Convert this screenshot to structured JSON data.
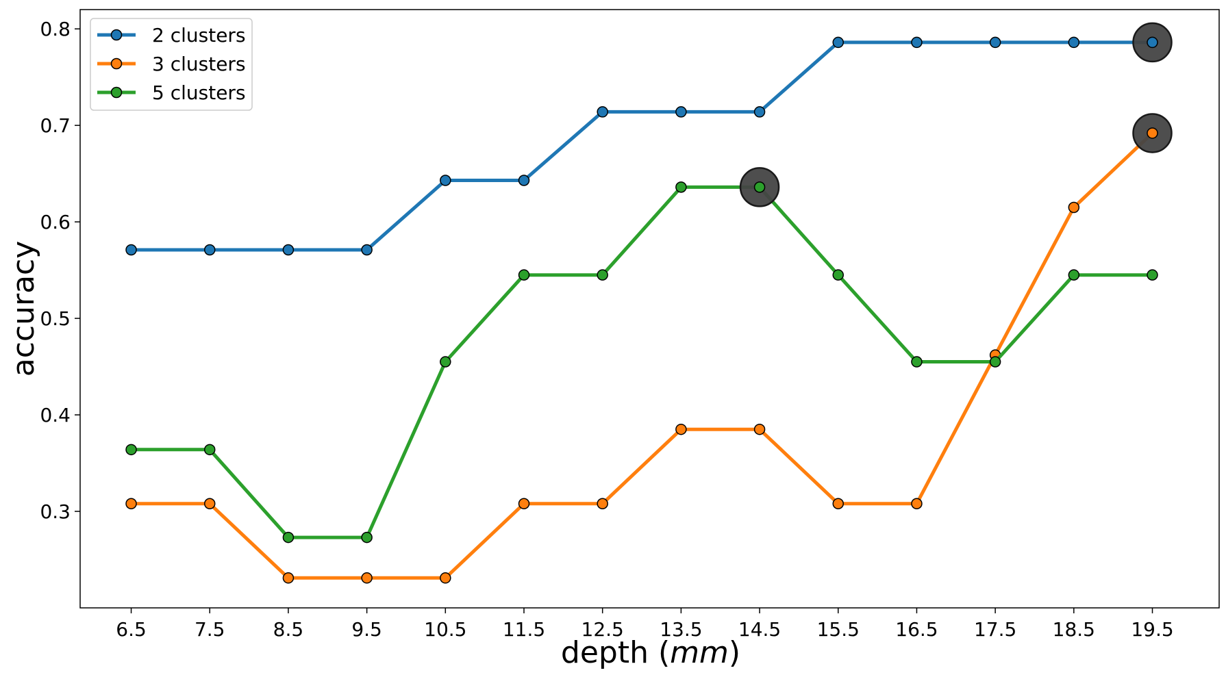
{
  "chart_data": {
    "type": "line",
    "title": "",
    "xlabel": "depth",
    "xlabel_unit": "mm",
    "ylabel": "accuracy",
    "x": [
      6.5,
      7.5,
      8.5,
      9.5,
      10.5,
      11.5,
      12.5,
      13.5,
      14.5,
      15.5,
      16.5,
      17.5,
      18.5,
      19.5
    ],
    "x_tick_labels": [
      "6.5",
      "7.5",
      "8.5",
      "9.5",
      "10.5",
      "11.5",
      "12.5",
      "13.5",
      "14.5",
      "15.5",
      "16.5",
      "17.5",
      "18.5",
      "19.5"
    ],
    "xlim": [
      5.85,
      20.35
    ],
    "y_ticks": [
      0.3,
      0.4,
      0.5,
      0.6,
      0.7,
      0.8
    ],
    "y_tick_labels": [
      "0.3",
      "0.4",
      "0.5",
      "0.6",
      "0.7",
      "0.8"
    ],
    "ylim": [
      0.2,
      0.82
    ],
    "grid": false,
    "legend_position": "top-left",
    "series": [
      {
        "name": "2 clusters",
        "color": "#1f77b4",
        "values": [
          0.571,
          0.571,
          0.571,
          0.571,
          0.643,
          0.643,
          0.714,
          0.714,
          0.714,
          0.786,
          0.786,
          0.786,
          0.786,
          0.786
        ],
        "best": {
          "x": 19.5,
          "y": 0.786
        }
      },
      {
        "name": "3 clusters",
        "color": "#ff7f0e",
        "values": [
          0.308,
          0.308,
          0.231,
          0.231,
          0.231,
          0.308,
          0.308,
          0.385,
          0.385,
          0.308,
          0.308,
          0.462,
          0.615,
          0.692
        ],
        "best": {
          "x": 19.5,
          "y": 0.692
        }
      },
      {
        "name": "5 clusters",
        "color": "#2ca02c",
        "values": [
          0.364,
          0.364,
          0.273,
          0.273,
          0.455,
          0.545,
          0.545,
          0.636,
          0.636,
          0.545,
          0.455,
          0.455,
          0.545,
          0.545
        ],
        "best": {
          "x": 14.5,
          "y": 0.636
        }
      }
    ],
    "highlight_color": "#444444"
  }
}
